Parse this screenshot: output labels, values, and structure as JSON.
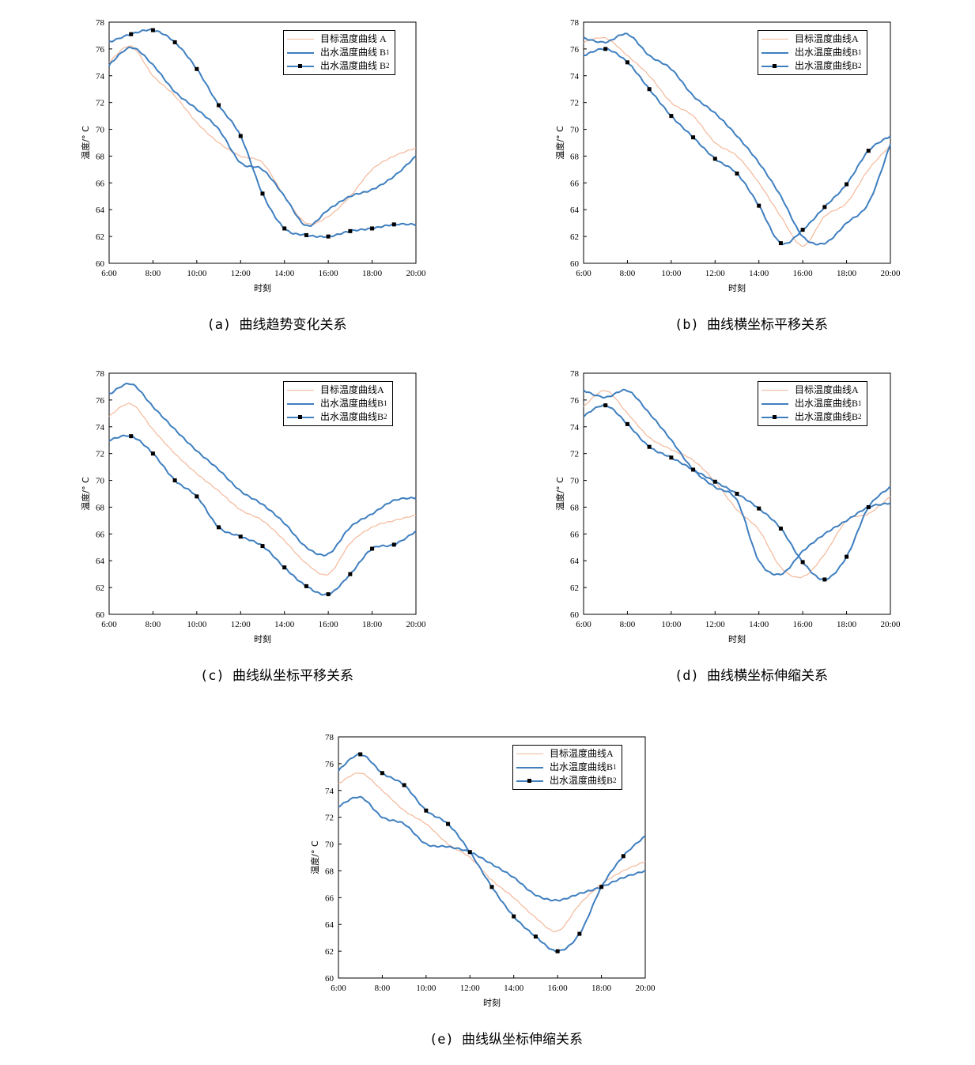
{
  "colors": {
    "A": "#f4b89a",
    "B1": "#3f7fbf",
    "B2": "#3f7fbf",
    "marker": "#000000"
  },
  "chart_data": [
    {
      "type": "line",
      "caption": "(a) 曲线趋势变化关系",
      "x": [
        "6:00",
        "7:00",
        "8:00",
        "9:00",
        "10:00",
        "11:00",
        "12:00",
        "13:00",
        "14:00",
        "15:00",
        "16:00",
        "17:00",
        "18:00",
        "19:00",
        "20:00"
      ],
      "xlabel": "时刻",
      "ylabel": "温度/° C",
      "ylim": [
        60,
        78
      ],
      "yticks": [
        "60",
        "62",
        "64",
        "66",
        "68",
        "70",
        "72",
        "74",
        "76",
        "78"
      ],
      "xticks": [
        "6:00",
        "8:00",
        "10:00",
        "12:00",
        "14:00",
        "16:00",
        "18:00",
        "20:00"
      ],
      "series": [
        {
          "name": "目标温度曲线 A",
          "values": [
            75.0,
            76.2,
            74.0,
            72.5,
            70.5,
            69.0,
            68.0,
            67.5,
            65.0,
            63.0,
            63.5,
            65.0,
            67.0,
            68.0,
            68.6
          ]
        },
        {
          "name": "出水温度曲线 B",
          "sub": "1",
          "values": [
            74.8,
            76.1,
            74.8,
            72.8,
            71.5,
            70.0,
            67.5,
            67.0,
            65.0,
            62.8,
            64.0,
            65.0,
            65.5,
            66.5,
            68.0
          ]
        },
        {
          "name": "出水温度曲线 B",
          "sub": "2",
          "markers": true,
          "values": [
            76.5,
            77.1,
            77.4,
            76.5,
            74.5,
            71.8,
            69.5,
            65.2,
            62.6,
            62.1,
            62.0,
            62.4,
            62.6,
            62.9,
            62.9
          ]
        }
      ]
    },
    {
      "type": "line",
      "caption": "(b) 曲线横坐标平移关系",
      "x": [
        "6:00",
        "7:00",
        "8:00",
        "9:00",
        "10:00",
        "11:00",
        "12:00",
        "13:00",
        "14:00",
        "15:00",
        "16:00",
        "17:00",
        "18:00",
        "19:00",
        "20:00"
      ],
      "xlabel": "时刻",
      "ylabel": "温度/° C",
      "ylim": [
        60,
        78
      ],
      "yticks": [
        "60",
        "62",
        "64",
        "66",
        "68",
        "70",
        "72",
        "74",
        "76",
        "78"
      ],
      "xticks": [
        "6:00",
        "8:00",
        "10:00",
        "12:00",
        "14:00",
        "16:00",
        "18:00",
        "20:00"
      ],
      "series": [
        {
          "name": "目标温度曲线A",
          "values": [
            76.5,
            76.8,
            75.5,
            74.0,
            72.0,
            71.0,
            69.0,
            68.0,
            66.0,
            63.5,
            61.3,
            63.5,
            64.5,
            67.0,
            68.8
          ]
        },
        {
          "name": "出水温度曲线B",
          "sub": "1",
          "values": [
            76.8,
            76.5,
            77.1,
            75.5,
            74.5,
            72.5,
            71.2,
            69.5,
            67.5,
            65.0,
            62.0,
            61.5,
            63.0,
            64.5,
            68.9
          ]
        },
        {
          "name": "出水温度曲线B",
          "sub": "2",
          "markers": true,
          "values": [
            75.5,
            76.0,
            75.0,
            73.0,
            71.0,
            69.4,
            67.8,
            66.7,
            64.3,
            61.5,
            62.5,
            64.2,
            65.9,
            68.4,
            69.5
          ]
        }
      ]
    },
    {
      "type": "line",
      "caption": "(c) 曲线纵坐标平移关系",
      "x": [
        "6:00",
        "7:00",
        "8:00",
        "9:00",
        "10:00",
        "11:00",
        "12:00",
        "13:00",
        "14:00",
        "15:00",
        "16:00",
        "17:00",
        "18:00",
        "19:00",
        "20:00"
      ],
      "xlabel": "时刻",
      "ylabel": "温度/° C",
      "ylim": [
        60,
        78
      ],
      "yticks": [
        "60",
        "62",
        "64",
        "66",
        "68",
        "70",
        "72",
        "74",
        "76",
        "78"
      ],
      "xticks": [
        "6:00",
        "8:00",
        "10:00",
        "12:00",
        "14:00",
        "16:00",
        "18:00",
        "20:00"
      ],
      "series": [
        {
          "name": "目标温度曲线A",
          "values": [
            74.8,
            75.7,
            73.8,
            72.0,
            70.5,
            69.2,
            67.8,
            67.0,
            65.5,
            63.8,
            63.0,
            65.3,
            66.5,
            67.0,
            67.4
          ]
        },
        {
          "name": "出水温度曲线B",
          "sub": "1",
          "values": [
            76.4,
            77.2,
            75.5,
            73.8,
            72.2,
            70.8,
            69.2,
            68.2,
            66.8,
            65.0,
            64.5,
            66.5,
            67.5,
            68.5,
            68.7
          ]
        },
        {
          "name": "出水温度曲线B",
          "sub": "2",
          "markers": true,
          "values": [
            73.0,
            73.3,
            72.0,
            70.0,
            68.8,
            66.5,
            65.8,
            65.1,
            63.5,
            62.1,
            61.5,
            63.0,
            64.9,
            65.2,
            66.2
          ]
        }
      ]
    },
    {
      "type": "line",
      "caption": "(d) 曲线横坐标伸缩关系",
      "x": [
        "6:00",
        "7:00",
        "8:00",
        "9:00",
        "10:00",
        "11:00",
        "12:00",
        "13:00",
        "14:00",
        "15:00",
        "16:00",
        "17:00",
        "18:00",
        "19:00",
        "20:00"
      ],
      "xlabel": "时刻",
      "ylabel": "温度/° C",
      "ylim": [
        60,
        78
      ],
      "yticks": [
        "60",
        "62",
        "64",
        "66",
        "68",
        "70",
        "72",
        "74",
        "76",
        "78"
      ],
      "xticks": [
        "6:00",
        "8:00",
        "10:00",
        "12:00",
        "14:00",
        "16:00",
        "18:00",
        "20:00"
      ],
      "series": [
        {
          "name": "目标温度曲线A",
          "values": [
            75.5,
            76.7,
            75.0,
            73.2,
            72.3,
            71.5,
            69.9,
            67.8,
            66.3,
            63.5,
            62.8,
            64.5,
            67.0,
            67.5,
            68.8
          ]
        },
        {
          "name": "出水温度曲线B",
          "sub": "1",
          "values": [
            76.7,
            76.2,
            76.7,
            75.0,
            73.0,
            70.8,
            69.5,
            68.5,
            64.0,
            63.0,
            64.7,
            66.0,
            67.0,
            68.0,
            68.3
          ]
        },
        {
          "name": "出水温度曲线B",
          "sub": "2",
          "markers": true,
          "values": [
            74.8,
            75.6,
            74.2,
            72.5,
            71.7,
            70.8,
            69.9,
            69.0,
            67.9,
            66.4,
            63.9,
            62.6,
            64.3,
            68.0,
            69.5
          ]
        }
      ]
    },
    {
      "type": "line",
      "caption": "(e) 曲线纵坐标伸缩关系",
      "x": [
        "6:00",
        "7:00",
        "8:00",
        "9:00",
        "10:00",
        "11:00",
        "12:00",
        "13:00",
        "14:00",
        "15:00",
        "16:00",
        "17:00",
        "18:00",
        "19:00",
        "20:00"
      ],
      "xlabel": "时刻",
      "ylabel": "温度/° C",
      "ylim": [
        60,
        78
      ],
      "yticks": [
        "60",
        "62",
        "64",
        "66",
        "68",
        "70",
        "72",
        "74",
        "76",
        "78"
      ],
      "xticks": [
        "6:00",
        "8:00",
        "10:00",
        "12:00",
        "14:00",
        "16:00",
        "18:00",
        "20:00"
      ],
      "series": [
        {
          "name": "目标温度曲线A",
          "values": [
            74.5,
            75.3,
            74.0,
            72.5,
            71.5,
            70.0,
            69.0,
            67.3,
            66.0,
            64.5,
            63.5,
            65.5,
            67.0,
            68.0,
            68.7
          ]
        },
        {
          "name": "出水温度曲线B",
          "sub": "1",
          "values": [
            72.8,
            73.5,
            72.0,
            71.5,
            70.0,
            69.8,
            69.4,
            68.5,
            67.5,
            66.2,
            65.8,
            66.3,
            66.8,
            67.5,
            68.0
          ]
        },
        {
          "name": "出水温度曲线B",
          "sub": "2",
          "markers": true,
          "values": [
            75.5,
            76.7,
            75.3,
            74.4,
            72.5,
            71.5,
            69.4,
            66.8,
            64.6,
            63.1,
            62.0,
            63.3,
            66.8,
            69.1,
            70.6
          ]
        }
      ]
    }
  ]
}
